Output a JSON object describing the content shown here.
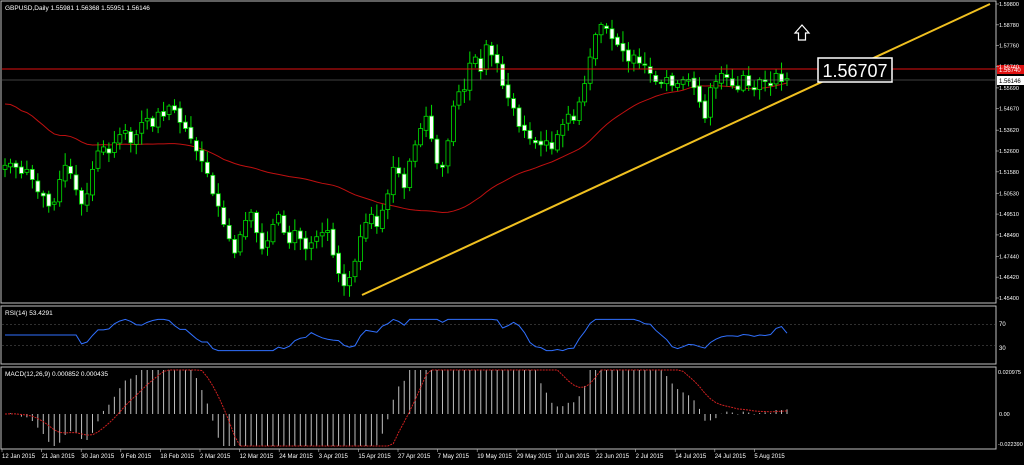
{
  "main": {
    "label": "GBPUSD,Daily  1.55981 1.56368 1.55951 1.56146",
    "price_ticks": [
      "1.59800",
      "1.58780",
      "1.57760",
      "1.56740",
      "1.55690",
      "1.54670",
      "1.53620",
      "1.52600",
      "1.51580",
      "1.50530",
      "1.49510",
      "1.48490",
      "1.47440",
      "1.46420",
      "1.45400"
    ],
    "hline_tag": "1.56740",
    "bid_tag": "1.56146",
    "callout": "1.56707",
    "arrow_icon": "up-arrow-icon"
  },
  "rsi": {
    "label": "RSI(14) 53.4291",
    "levels": [
      "70",
      "30"
    ]
  },
  "macd": {
    "label": "MACD(12,26,9) 0.000852 0.000435",
    "ticks": [
      "0.020975",
      "0.00",
      "-0.022390"
    ]
  },
  "dates": [
    "12 Jan 2015",
    "21 Jan 2015",
    "30 Jan 2015",
    "9 Feb 2015",
    "18 Feb 2015",
    "2 Mar 2015",
    "12 Mar 2015",
    "24 Mar 2015",
    "3 Apr 2015",
    "15 Apr 2015",
    "27 Apr 2015",
    "7 May 2015",
    "19 May 2015",
    "29 May 2015",
    "10 Jun 2015",
    "22 Jun 2015",
    "2 Jul 2015",
    "14 Jul 2015",
    "24 Jul 2015",
    "5 Aug 2015"
  ],
  "chart_data": {
    "type": "candlestick",
    "symbol": "GBPUSD",
    "timeframe": "Daily",
    "ohlc_last": {
      "open": 1.55981,
      "high": 1.56368,
      "low": 1.55951,
      "close": 1.56146
    },
    "ylim": [
      1.454,
      1.598
    ],
    "close_series": [
      1.519,
      1.52,
      1.518,
      1.515,
      1.517,
      1.512,
      1.506,
      1.504,
      1.499,
      1.501,
      1.512,
      1.519,
      1.515,
      1.507,
      1.5,
      1.505,
      1.517,
      1.526,
      1.528,
      1.525,
      1.53,
      1.534,
      1.536,
      1.53,
      1.534,
      1.54,
      1.542,
      1.538,
      1.545,
      1.543,
      1.548,
      1.546,
      1.54,
      1.537,
      1.532,
      1.526,
      1.521,
      1.515,
      1.505,
      1.499,
      1.49,
      1.483,
      1.476,
      1.485,
      1.492,
      1.496,
      1.486,
      1.478,
      1.482,
      1.49,
      1.495,
      1.486,
      1.481,
      1.487,
      1.483,
      1.478,
      1.481,
      1.484,
      1.486,
      1.487,
      1.475,
      1.466,
      1.46,
      1.464,
      1.472,
      1.484,
      1.491,
      1.495,
      1.489,
      1.497,
      1.505,
      1.518,
      1.515,
      1.508,
      1.521,
      1.529,
      1.537,
      1.543,
      1.532,
      1.52,
      1.518,
      1.531,
      1.548,
      1.555,
      1.556,
      1.569,
      1.572,
      1.565,
      1.578,
      1.573,
      1.569,
      1.558,
      1.552,
      1.547,
      1.538,
      1.536,
      1.532,
      1.53,
      1.529,
      1.531,
      1.527,
      1.534,
      1.539,
      1.544,
      1.541,
      1.55,
      1.559,
      1.572,
      1.583,
      1.588,
      1.586,
      1.581,
      1.578,
      1.575,
      1.57,
      1.573,
      1.569,
      1.568,
      1.564,
      1.56,
      1.559,
      1.562,
      1.558,
      1.559,
      1.561,
      1.561,
      1.557,
      1.55,
      1.542,
      1.557,
      1.56,
      1.564,
      1.562,
      1.558,
      1.556,
      1.563,
      1.558,
      1.556,
      1.561,
      1.56,
      1.558,
      1.564,
      1.56,
      1.5614
    ],
    "trendline": {
      "from": {
        "date": "9 Apr 2015",
        "price": 1.46
      },
      "to": {
        "date": "5 Aug 2015",
        "price": 1.559
      }
    },
    "horizontal_line": 1.5674,
    "rsi": {
      "period": 14,
      "last": 53.4291,
      "levels": [
        30,
        70
      ]
    },
    "macd": {
      "fast": 12,
      "slow": 26,
      "signal": 9,
      "main": 0.000852,
      "signal_value": 0.000435
    }
  }
}
